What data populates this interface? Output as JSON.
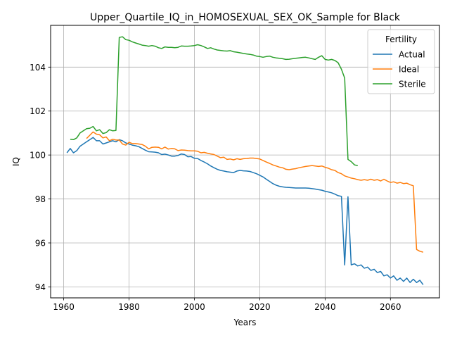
{
  "chart_data": {
    "type": "line",
    "title": "Upper_Quartile_IQ_in_HOMOSEXUAL_SEX_OK_Sample for Black",
    "xlabel": "Years",
    "ylabel": "IQ",
    "xlim": [
      1956,
      2075
    ],
    "ylim": [
      93.5,
      105.9
    ],
    "xticks": [
      1960,
      1980,
      2000,
      2020,
      2040,
      2060
    ],
    "yticks": [
      94,
      96,
      98,
      100,
      102,
      104
    ],
    "grid": true,
    "legend": {
      "title": "Fertility",
      "placement": "top-right"
    },
    "series": [
      {
        "name": "Actual",
        "color": "#1f77b4",
        "x": [
          1961,
          1962,
          1963,
          1964,
          1965,
          1966,
          1967,
          1968,
          1969,
          1970,
          1971,
          1972,
          1973,
          1974,
          1975,
          1976,
          1977,
          1978,
          1979,
          1980,
          1981,
          1982,
          1983,
          1984,
          1985,
          1986,
          1987,
          1988,
          1989,
          1990,
          1991,
          1992,
          1993,
          1994,
          1995,
          1996,
          1997,
          1998,
          1999,
          2000,
          2001,
          2002,
          2003,
          2004,
          2005,
          2006,
          2007,
          2008,
          2009,
          2010,
          2011,
          2012,
          2013,
          2014,
          2015,
          2016,
          2017,
          2018,
          2019,
          2020,
          2021,
          2022,
          2023,
          2024,
          2025,
          2026,
          2027,
          2028,
          2029,
          2030,
          2031,
          2032,
          2033,
          2034,
          2035,
          2036,
          2037,
          2038,
          2039,
          2040,
          2041,
          2042,
          2043,
          2044,
          2045,
          2046,
          2047,
          2048,
          2049,
          2050,
          2051,
          2052,
          2053,
          2054,
          2055,
          2056,
          2057,
          2058,
          2059,
          2060,
          2061,
          2062,
          2063,
          2064,
          2065,
          2066,
          2067,
          2068,
          2069,
          2070
        ],
        "values": [
          100.1,
          100.3,
          100.1,
          100.2,
          100.4,
          100.5,
          100.6,
          100.7,
          100.8,
          100.65,
          100.65,
          100.5,
          100.55,
          100.6,
          100.65,
          100.6,
          100.7,
          100.65,
          100.55,
          100.5,
          100.45,
          100.42,
          100.38,
          100.3,
          100.22,
          100.15,
          100.14,
          100.13,
          100.1,
          100.02,
          100.04,
          100.0,
          99.95,
          99.95,
          99.98,
          100.05,
          100.02,
          99.92,
          99.93,
          99.85,
          99.84,
          99.75,
          99.68,
          99.6,
          99.5,
          99.42,
          99.35,
          99.3,
          99.27,
          99.24,
          99.22,
          99.2,
          99.27,
          99.3,
          99.28,
          99.27,
          99.25,
          99.2,
          99.15,
          99.08,
          99.0,
          98.9,
          98.8,
          98.7,
          98.63,
          98.58,
          98.55,
          98.53,
          98.52,
          98.51,
          98.5,
          98.5,
          98.5,
          98.5,
          98.49,
          98.47,
          98.45,
          98.42,
          98.4,
          98.35,
          98.32,
          98.28,
          98.22,
          98.15,
          98.12,
          95.0,
          98.1,
          95.0,
          95.05,
          94.95,
          95.0,
          94.85,
          94.9,
          94.75,
          94.8,
          94.65,
          94.7,
          94.5,
          94.55,
          94.4,
          94.5,
          94.3,
          94.4,
          94.25,
          94.4,
          94.2,
          94.35,
          94.2,
          94.3,
          94.1
        ]
      },
      {
        "name": "Ideal",
        "color": "#ff7f0e",
        "x": [
          1967,
          1968,
          1969,
          1970,
          1971,
          1972,
          1973,
          1974,
          1975,
          1976,
          1977,
          1978,
          1979,
          1980,
          1981,
          1982,
          1983,
          1984,
          1985,
          1986,
          1987,
          1988,
          1989,
          1990,
          1991,
          1992,
          1993,
          1994,
          1995,
          1996,
          1997,
          1998,
          1999,
          2000,
          2001,
          2002,
          2003,
          2004,
          2005,
          2006,
          2007,
          2008,
          2009,
          2010,
          2011,
          2012,
          2013,
          2014,
          2015,
          2016,
          2017,
          2018,
          2019,
          2020,
          2021,
          2022,
          2023,
          2024,
          2025,
          2026,
          2027,
          2028,
          2029,
          2030,
          2031,
          2032,
          2033,
          2034,
          2035,
          2036,
          2037,
          2038,
          2039,
          2040,
          2041,
          2042,
          2043,
          2044,
          2045,
          2046,
          2047,
          2048,
          2049,
          2050,
          2051,
          2052,
          2053,
          2054,
          2055,
          2056,
          2057,
          2058,
          2059,
          2060,
          2061,
          2062,
          2063,
          2064,
          2065,
          2066,
          2067,
          2068,
          2069,
          2070
        ],
        "values": [
          100.75,
          100.9,
          101.05,
          100.95,
          100.92,
          100.78,
          100.82,
          100.65,
          100.72,
          100.68,
          100.68,
          100.5,
          100.45,
          100.58,
          100.52,
          100.52,
          100.5,
          100.48,
          100.4,
          100.28,
          100.35,
          100.36,
          100.35,
          100.28,
          100.36,
          100.27,
          100.3,
          100.28,
          100.2,
          100.23,
          100.22,
          100.2,
          100.19,
          100.19,
          100.17,
          100.1,
          100.12,
          100.08,
          100.05,
          100.02,
          99.95,
          99.88,
          99.9,
          99.8,
          99.82,
          99.78,
          99.83,
          99.8,
          99.83,
          99.84,
          99.86,
          99.86,
          99.84,
          99.82,
          99.75,
          99.68,
          99.62,
          99.55,
          99.5,
          99.45,
          99.42,
          99.35,
          99.33,
          99.36,
          99.38,
          99.42,
          99.45,
          99.48,
          99.5,
          99.52,
          99.5,
          99.48,
          99.5,
          99.44,
          99.4,
          99.33,
          99.3,
          99.2,
          99.15,
          99.05,
          99.0,
          98.95,
          98.92,
          98.88,
          98.85,
          98.88,
          98.85,
          98.9,
          98.85,
          98.88,
          98.82,
          98.9,
          98.82,
          98.75,
          98.78,
          98.72,
          98.75,
          98.7,
          98.72,
          98.65,
          98.6,
          95.7,
          95.62,
          95.58
        ]
      },
      {
        "name": "Sterile",
        "color": "#2ca02c",
        "x": [
          1962,
          1963,
          1964,
          1965,
          1966,
          1967,
          1968,
          1969,
          1970,
          1971,
          1972,
          1973,
          1974,
          1975,
          1976,
          1977,
          1978,
          1979,
          1980,
          1981,
          1982,
          1983,
          1984,
          1985,
          1986,
          1987,
          1988,
          1989,
          1990,
          1991,
          1992,
          1993,
          1994,
          1995,
          1996,
          1997,
          1998,
          1999,
          2000,
          2001,
          2002,
          2003,
          2004,
          2005,
          2006,
          2007,
          2008,
          2009,
          2010,
          2011,
          2012,
          2013,
          2014,
          2015,
          2016,
          2017,
          2018,
          2019,
          2020,
          2021,
          2022,
          2023,
          2024,
          2025,
          2026,
          2027,
          2028,
          2029,
          2030,
          2031,
          2032,
          2033,
          2034,
          2035,
          2036,
          2037,
          2038,
          2039,
          2040,
          2041,
          2042,
          2043,
          2044,
          2045,
          2046,
          2047,
          2048,
          2049,
          2050
        ],
        "values": [
          100.72,
          100.7,
          100.78,
          101.0,
          101.1,
          101.2,
          101.22,
          101.3,
          101.1,
          101.15,
          100.98,
          101.02,
          101.15,
          101.1,
          101.12,
          105.35,
          105.38,
          105.25,
          105.22,
          105.15,
          105.1,
          105.05,
          105.0,
          104.98,
          104.95,
          104.98,
          104.95,
          104.88,
          104.85,
          104.92,
          104.9,
          104.9,
          104.88,
          104.9,
          104.96,
          104.95,
          104.95,
          104.96,
          104.98,
          105.02,
          104.98,
          104.92,
          104.85,
          104.88,
          104.82,
          104.78,
          104.76,
          104.74,
          104.73,
          104.75,
          104.7,
          104.68,
          104.65,
          104.62,
          104.6,
          104.58,
          104.55,
          104.5,
          104.48,
          104.45,
          104.48,
          104.5,
          104.45,
          104.42,
          104.4,
          104.38,
          104.35,
          104.36,
          104.38,
          104.4,
          104.42,
          104.44,
          104.45,
          104.42,
          104.38,
          104.35,
          104.45,
          104.52,
          104.35,
          104.32,
          104.35,
          104.3,
          104.2,
          103.9,
          103.5,
          99.8,
          99.7,
          99.55,
          99.52
        ]
      }
    ]
  }
}
